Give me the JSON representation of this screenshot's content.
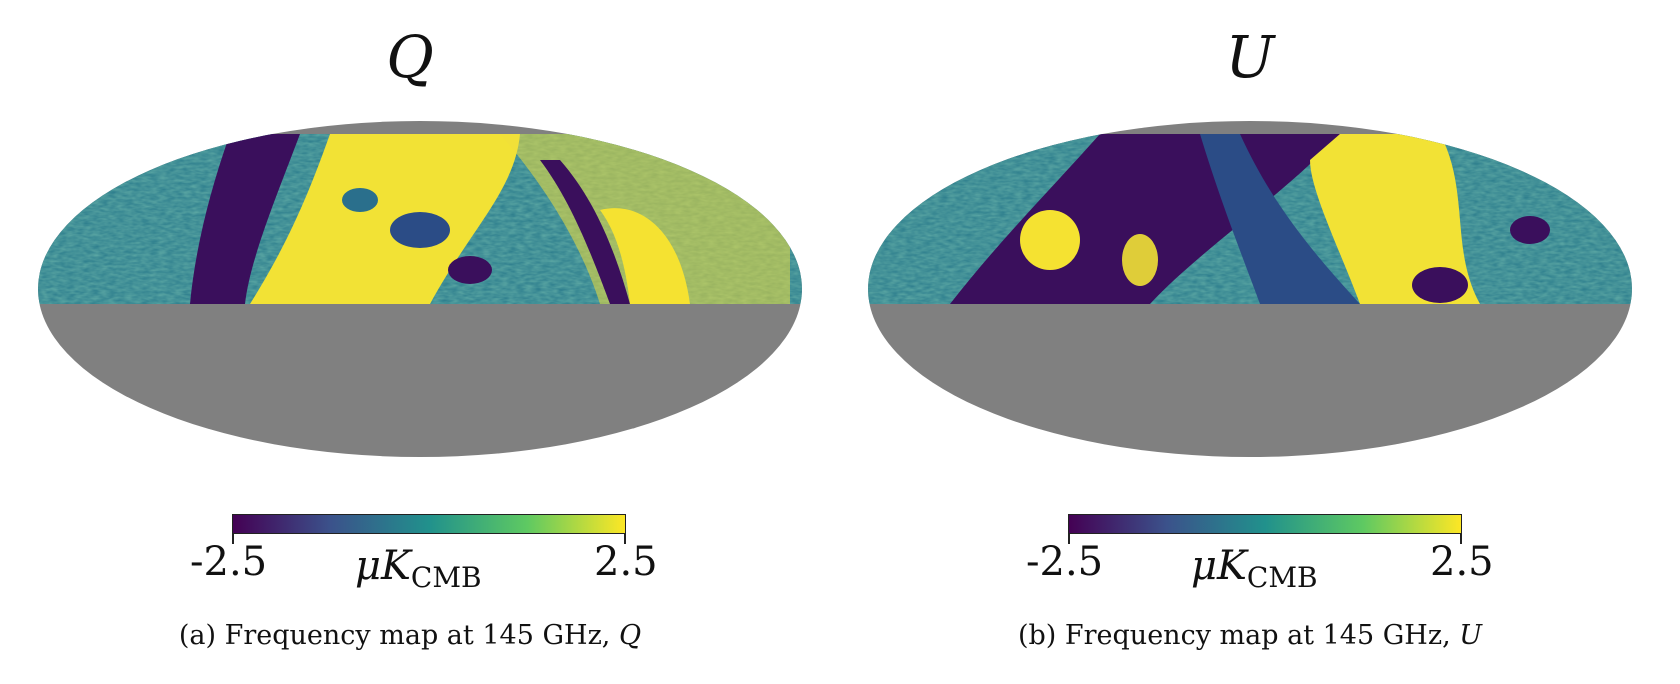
{
  "panels": [
    {
      "title": "Q",
      "colorbar": {
        "min_label": "-2.5",
        "max_label": "2.5",
        "unit_prefix": "μK",
        "unit_sub": "CMB",
        "colormap": [
          "#440154",
          "#3b528b",
          "#21918c",
          "#5ec962",
          "#fde725"
        ]
      },
      "caption": {
        "letter": "(a)",
        "text": "Frequency map at 145 GHz,",
        "symbol": "Q"
      }
    },
    {
      "title": "U",
      "colorbar": {
        "min_label": "-2.5",
        "max_label": "2.5",
        "unit_prefix": "μK",
        "unit_sub": "CMB",
        "colormap": [
          "#440154",
          "#3b528b",
          "#21918c",
          "#5ec962",
          "#fde725"
        ]
      },
      "caption": {
        "letter": "(b)",
        "text": "Frequency map at 145 GHz,",
        "symbol": "U"
      }
    }
  ],
  "colors": {
    "mask": "#808080",
    "background": "#ffffff"
  }
}
